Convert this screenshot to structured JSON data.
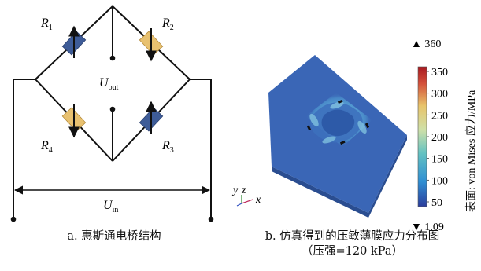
{
  "panel_a": {
    "caption": "a. 惠斯通电桥结构",
    "resistors": [
      {
        "id": "R1",
        "base": "R",
        "sub": "1",
        "color": "#3e5c98"
      },
      {
        "id": "R2",
        "base": "R",
        "sub": "2",
        "color": "#e8c170"
      },
      {
        "id": "R3",
        "base": "R",
        "sub": "3",
        "color": "#3e5c98"
      },
      {
        "id": "R4",
        "base": "R",
        "sub": "4",
        "color": "#e8c170"
      }
    ],
    "u_out": {
      "base": "U",
      "sub": "out"
    },
    "u_in": {
      "base": "U",
      "sub": "in"
    }
  },
  "panel_b": {
    "caption_line1": "b. 仿真得到的压敏薄膜应力分布图",
    "caption_line2": "（压强=120 kPa）",
    "colorbar": {
      "max_label": "▲ 360",
      "min_label": "▼ 1.09",
      "ticks": [
        "350",
        "300",
        "250",
        "200",
        "150",
        "100",
        "50"
      ],
      "title": "表面: von Mises 应力/MPa"
    },
    "axes": {
      "y": "y",
      "z": "z",
      "x": "x"
    }
  },
  "colors": {
    "plate": "#3a66b6",
    "plate_side": "#2a4d90",
    "highlight": "#6fb0d9",
    "wire": "#111111"
  }
}
